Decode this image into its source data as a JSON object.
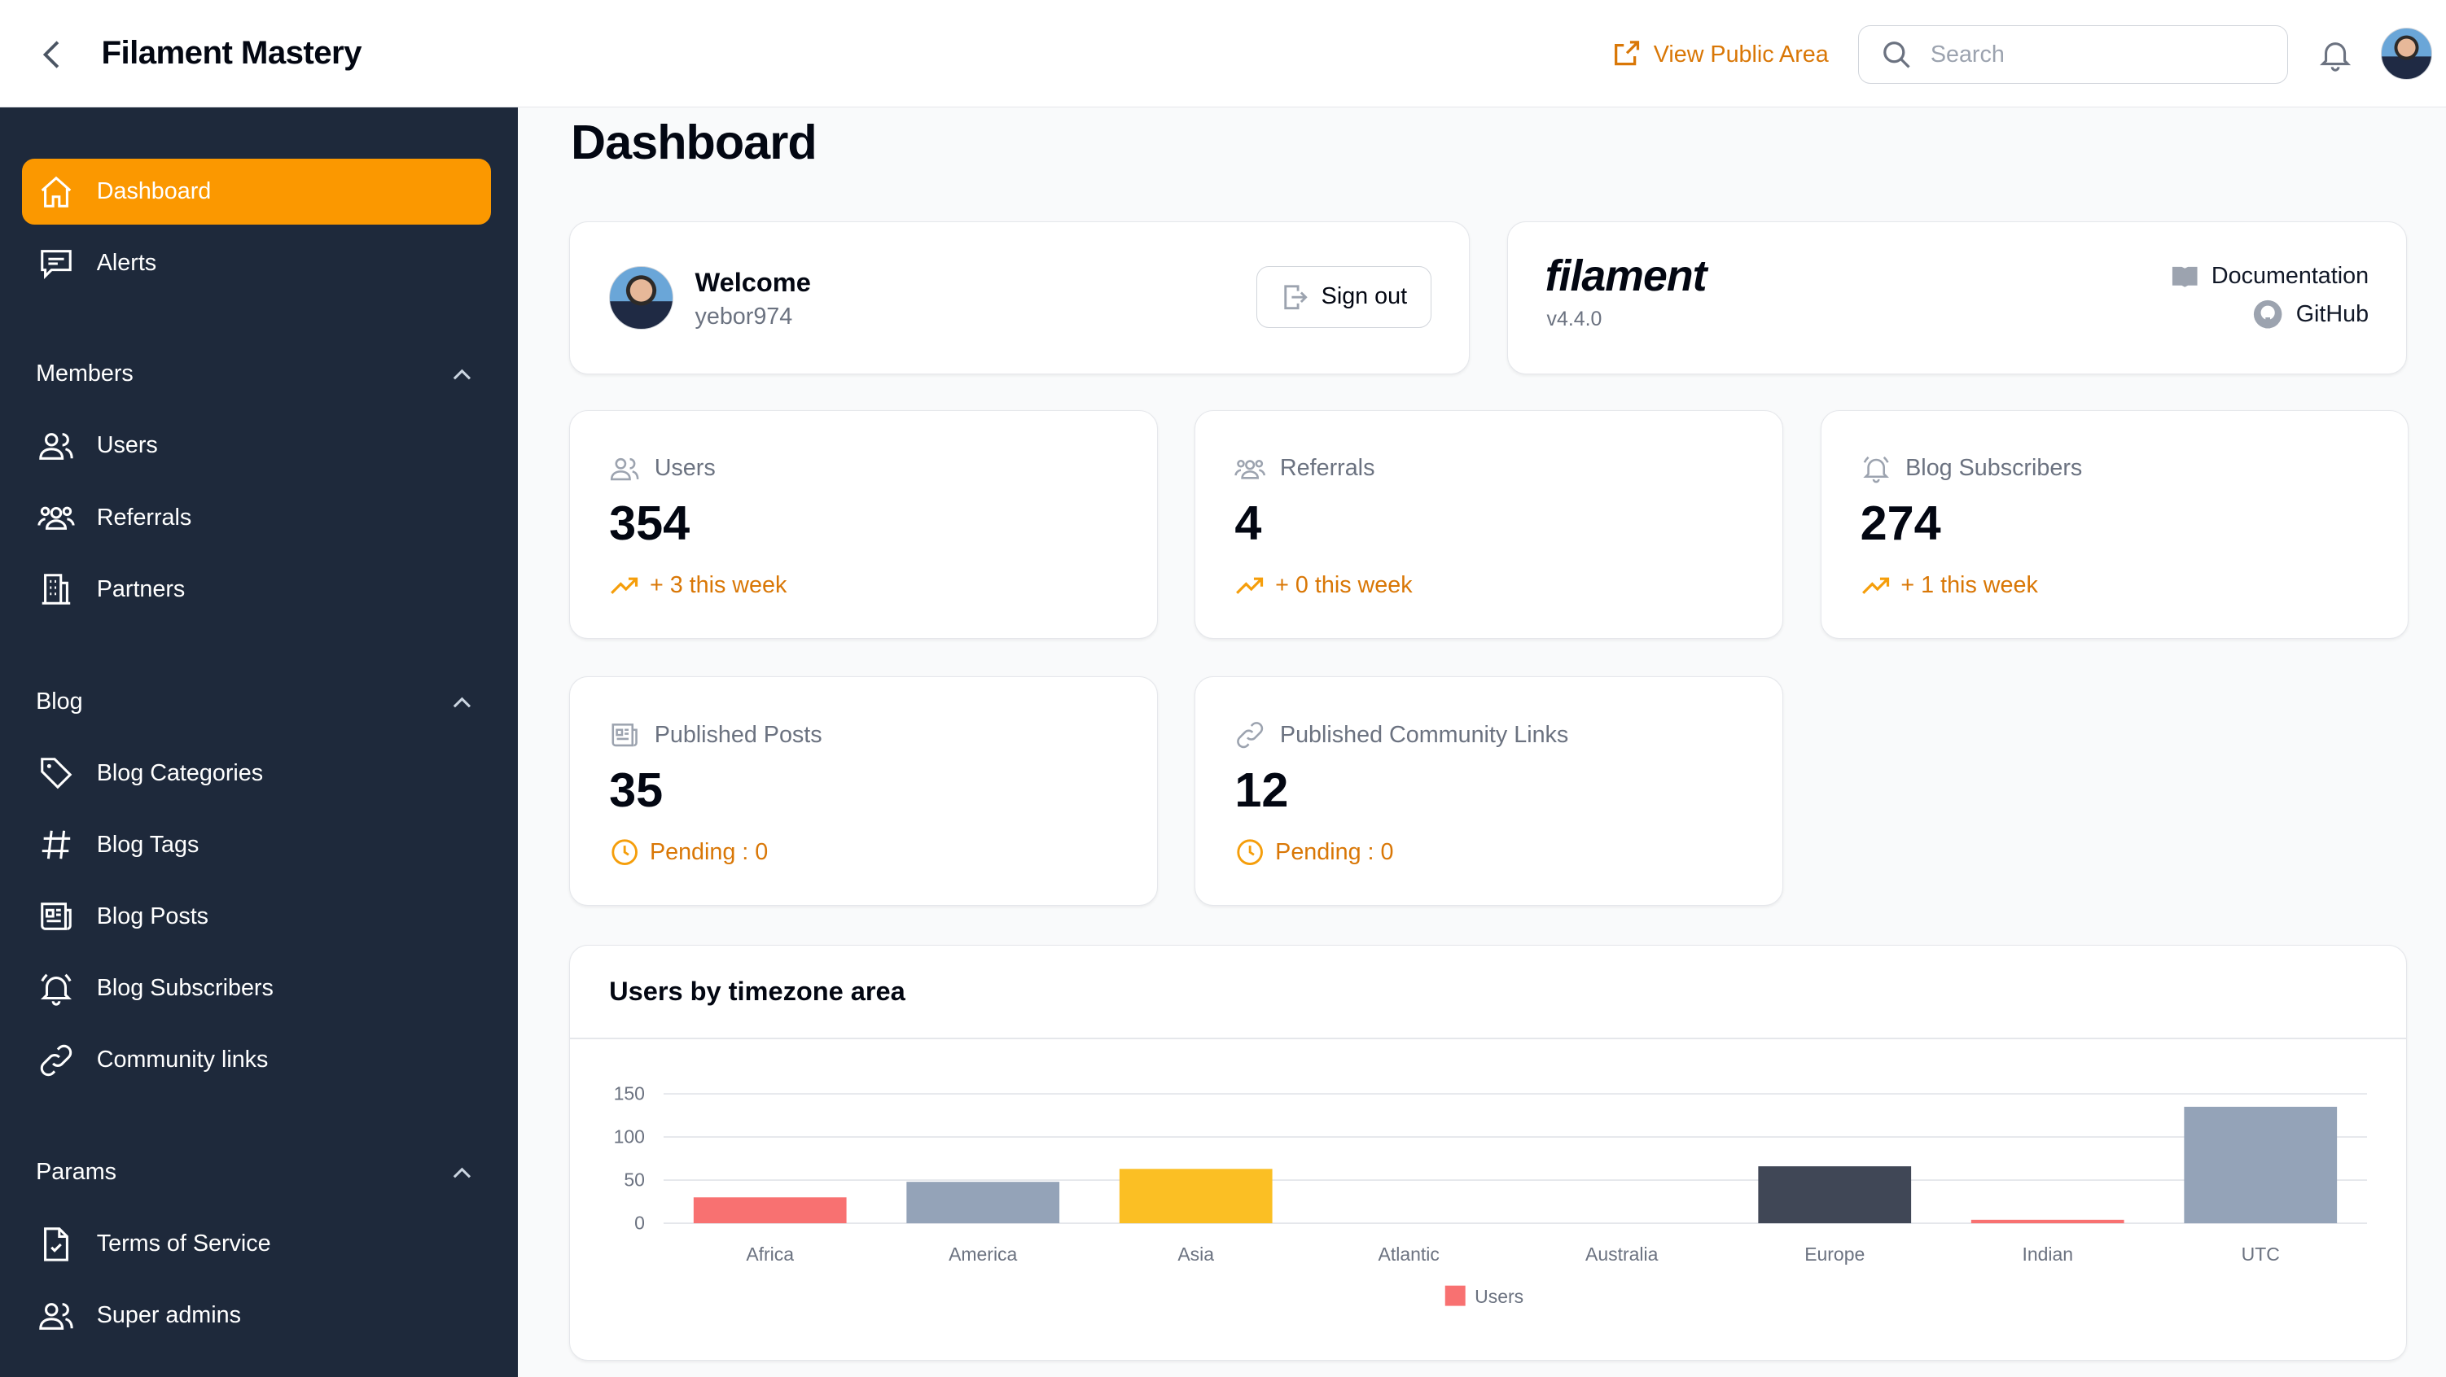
{
  "header": {
    "title": "Filament Mastery",
    "view_public": "View Public Area",
    "search_placeholder": "Search"
  },
  "sidebar": {
    "top": [
      {
        "label": "Dashboard",
        "icon": "home-icon",
        "active": true
      },
      {
        "label": "Alerts",
        "icon": "chat-bubble-icon"
      }
    ],
    "groups": [
      {
        "label": "Members",
        "items": [
          {
            "label": "Users",
            "icon": "users-icon"
          },
          {
            "label": "Referrals",
            "icon": "user-group-icon"
          },
          {
            "label": "Partners",
            "icon": "building-icon"
          }
        ]
      },
      {
        "label": "Blog",
        "items": [
          {
            "label": "Blog Categories",
            "icon": "tag-icon"
          },
          {
            "label": "Blog Tags",
            "icon": "hashtag-icon"
          },
          {
            "label": "Blog Posts",
            "icon": "newspaper-icon"
          },
          {
            "label": "Blog Subscribers",
            "icon": "bell-alert-icon"
          },
          {
            "label": "Community links",
            "icon": "link-icon"
          }
        ]
      },
      {
        "label": "Params",
        "items": [
          {
            "label": "Terms of Service",
            "icon": "document-check-icon"
          },
          {
            "label": "Super admins",
            "icon": "users-icon"
          }
        ]
      }
    ]
  },
  "page": {
    "title": "Dashboard"
  },
  "welcome": {
    "title": "Welcome",
    "username": "yebor974",
    "signout": "Sign out"
  },
  "filament": {
    "logo": "filament",
    "version": "v4.4.0",
    "docs": "Documentation",
    "github": "GitHub"
  },
  "stats": [
    {
      "label": "Users",
      "value": "354",
      "sub": "+ 3 this week",
      "icon": "users-icon",
      "subicon": "trending-up-icon"
    },
    {
      "label": "Referrals",
      "value": "4",
      "sub": "+ 0 this week",
      "icon": "user-group-icon",
      "subicon": "trending-up-icon"
    },
    {
      "label": "Blog Subscribers",
      "value": "274",
      "sub": "+ 1 this week",
      "icon": "bell-alert-icon",
      "subicon": "trending-up-icon"
    },
    {
      "label": "Published Posts",
      "value": "35",
      "sub": "Pending : 0",
      "icon": "newspaper-icon",
      "subicon": "clock-icon"
    },
    {
      "label": "Published Community Links",
      "value": "12",
      "sub": "Pending : 0",
      "icon": "link-icon",
      "subicon": "clock-icon"
    }
  ],
  "colors": {
    "accent": "#fb9800",
    "sidebar": "#1e293b",
    "warning": "#d97706"
  },
  "chart_data": {
    "type": "bar",
    "title": "Users by timezone area",
    "categories": [
      "Africa",
      "America",
      "Asia",
      "Atlantic",
      "Australia",
      "Europe",
      "Indian",
      "UTC"
    ],
    "series": [
      {
        "name": "Users",
        "values": [
          30,
          48,
          63,
          0,
          0,
          66,
          4,
          135
        ]
      }
    ],
    "bar_colors": [
      "#f87171",
      "#94a3b8",
      "#fbbf24",
      "#94a3b8",
      "#94a3b8",
      "#404756",
      "#f87171",
      "#94a3b8"
    ],
    "yticks": [
      "0",
      "50",
      "100",
      "150"
    ],
    "ylim": [
      0,
      150
    ],
    "grid": true,
    "legend": "bottom"
  }
}
